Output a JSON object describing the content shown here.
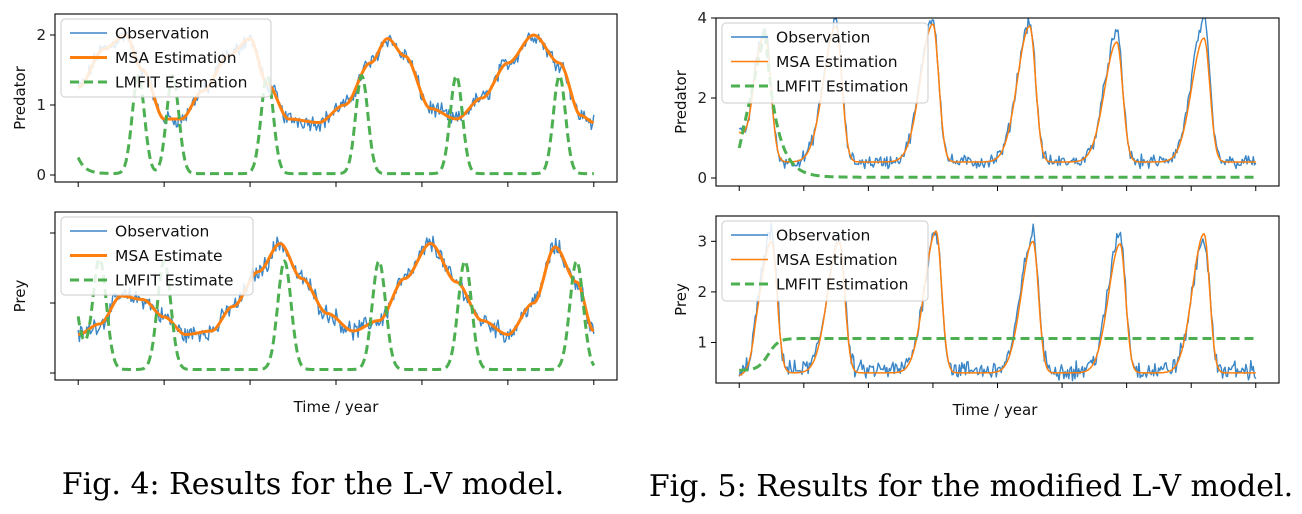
{
  "figures": [
    {
      "caption": "Fig. 4: Results for the L-V model.",
      "xlabel": "Time / year"
    },
    {
      "caption": "Fig. 5: Results for the modified L-V model.",
      "xlabel": "Time / year"
    }
  ],
  "colors": {
    "observation": "#3a86c6",
    "msa": "#ff7f0e",
    "lmfit": "#4caf50"
  },
  "chart_data": [
    {
      "type": "line",
      "figure": "Fig. 4",
      "ylabel": "Predator",
      "xlim": [
        0,
        6
      ],
      "ylim": [
        -0.1,
        2.3
      ],
      "yticks": [
        0,
        1,
        2
      ],
      "xticks": [
        0,
        1,
        2,
        3,
        4,
        5,
        6
      ],
      "legend_position": "top-left",
      "grid": false,
      "series": [
        {
          "name": "Observation",
          "style": "thin-solid",
          "base": [
            [
              0,
              1.25
            ],
            [
              0.3,
              1.8
            ],
            [
              0.55,
              2.0
            ],
            [
              0.75,
              1.5
            ],
            [
              1.0,
              0.8
            ],
            [
              1.2,
              0.8
            ],
            [
              1.45,
              1.2
            ],
            [
              1.75,
              1.7
            ],
            [
              2.0,
              1.95
            ],
            [
              2.2,
              1.3
            ],
            [
              2.45,
              0.8
            ],
            [
              2.8,
              0.75
            ],
            [
              3.1,
              1.0
            ],
            [
              3.4,
              1.6
            ],
            [
              3.6,
              1.95
            ],
            [
              3.8,
              1.7
            ],
            [
              4.1,
              0.95
            ],
            [
              4.4,
              0.8
            ],
            [
              4.7,
              1.1
            ],
            [
              5.0,
              1.6
            ],
            [
              5.3,
              2.0
            ],
            [
              5.6,
              1.6
            ],
            [
              5.85,
              0.85
            ],
            [
              6,
              0.75
            ]
          ],
          "noise": 0.09
        },
        {
          "name": "MSA Estimation",
          "style": "thick-solid",
          "points": [
            [
              0,
              1.25
            ],
            [
              0.3,
              1.8
            ],
            [
              0.55,
              2.0
            ],
            [
              0.75,
              1.5
            ],
            [
              1.0,
              0.8
            ],
            [
              1.2,
              0.8
            ],
            [
              1.45,
              1.2
            ],
            [
              1.75,
              1.7
            ],
            [
              2.0,
              1.95
            ],
            [
              2.2,
              1.3
            ],
            [
              2.45,
              0.8
            ],
            [
              2.8,
              0.75
            ],
            [
              3.1,
              1.0
            ],
            [
              3.4,
              1.6
            ],
            [
              3.6,
              1.95
            ],
            [
              3.8,
              1.7
            ],
            [
              4.1,
              0.95
            ],
            [
              4.4,
              0.8
            ],
            [
              4.7,
              1.1
            ],
            [
              5.0,
              1.6
            ],
            [
              5.3,
              2.0
            ],
            [
              5.6,
              1.6
            ],
            [
              5.85,
              0.85
            ],
            [
              6,
              0.75
            ]
          ]
        },
        {
          "name": "LMFIT Estimation",
          "style": "dashed",
          "spikes": {
            "baseline": 0.02,
            "start": 0.25,
            "peaks": [
              0.7,
              1.1,
              2.2,
              3.3,
              4.4,
              5.6
            ],
            "height": 1.4,
            "width": 0.1
          }
        }
      ]
    },
    {
      "type": "line",
      "figure": "Fig. 4",
      "ylabel": "Prey",
      "xlim": [
        0,
        6
      ],
      "ylim": [
        -0.1,
        2.3
      ],
      "yticks": [
        0,
        1,
        2
      ],
      "ytick_labels": [
        "",
        "",
        ""
      ],
      "xticks": [
        0,
        1,
        2,
        3,
        4,
        5,
        6
      ],
      "legend_position": "top-left",
      "grid": false,
      "series": [
        {
          "name": "Observation",
          "style": "thin-solid",
          "base": [
            [
              0,
              0.55
            ],
            [
              0.25,
              0.7
            ],
            [
              0.5,
              1.1
            ],
            [
              0.75,
              1.05
            ],
            [
              1.0,
              0.8
            ],
            [
              1.25,
              0.55
            ],
            [
              1.55,
              0.6
            ],
            [
              1.8,
              0.95
            ],
            [
              2.1,
              1.45
            ],
            [
              2.35,
              1.85
            ],
            [
              2.6,
              1.35
            ],
            [
              2.9,
              0.85
            ],
            [
              3.2,
              0.6
            ],
            [
              3.5,
              0.75
            ],
            [
              3.8,
              1.35
            ],
            [
              4.1,
              1.85
            ],
            [
              4.4,
              1.3
            ],
            [
              4.7,
              0.75
            ],
            [
              5.0,
              0.55
            ],
            [
              5.3,
              1.0
            ],
            [
              5.55,
              1.8
            ],
            [
              5.8,
              1.3
            ],
            [
              6,
              0.6
            ]
          ],
          "noise": 0.1
        },
        {
          "name": "MSA Estimate",
          "style": "thick-solid",
          "points": [
            [
              0,
              0.55
            ],
            [
              0.25,
              0.7
            ],
            [
              0.5,
              1.1
            ],
            [
              0.75,
              1.05
            ],
            [
              1.0,
              0.8
            ],
            [
              1.25,
              0.55
            ],
            [
              1.55,
              0.6
            ],
            [
              1.8,
              0.95
            ],
            [
              2.1,
              1.45
            ],
            [
              2.35,
              1.85
            ],
            [
              2.6,
              1.35
            ],
            [
              2.9,
              0.85
            ],
            [
              3.2,
              0.6
            ],
            [
              3.5,
              0.75
            ],
            [
              3.8,
              1.35
            ],
            [
              4.1,
              1.85
            ],
            [
              4.4,
              1.3
            ],
            [
              4.7,
              0.75
            ],
            [
              5.0,
              0.55
            ],
            [
              5.3,
              1.0
            ],
            [
              5.55,
              1.8
            ],
            [
              5.8,
              1.3
            ],
            [
              6,
              0.6
            ]
          ]
        },
        {
          "name": "LMFIT Estimate",
          "style": "dashed",
          "spikes": {
            "baseline": 0.05,
            "start": 0.8,
            "peaks": [
              0.25,
              1.0,
              2.4,
              3.5,
              4.5,
              5.8
            ],
            "height": 1.55,
            "width": 0.11
          }
        }
      ]
    },
    {
      "type": "line",
      "figure": "Fig. 5",
      "ylabel": "Predator",
      "xlim": [
        0,
        8
      ],
      "ylim": [
        -0.2,
        4.0
      ],
      "yticks": [
        0,
        2,
        4
      ],
      "xticks": [
        0,
        1,
        2,
        3,
        4,
        5,
        6,
        7,
        8
      ],
      "legend_position": "top-left",
      "grid": false,
      "series": [
        {
          "name": "Observation",
          "style": "thin-solid",
          "peaks": {
            "baseline": 0.4,
            "centers": [
              0.4,
              1.5,
              3.0,
              4.5,
              5.85,
              7.2
            ],
            "heights": [
              3.3,
              3.5,
              3.6,
              3.5,
              3.2,
              3.5
            ],
            "width": 0.18,
            "start": 1.15
          },
          "noise": 0.13
        },
        {
          "name": "MSA Estimation",
          "style": "thin-solid",
          "peaks": {
            "baseline": 0.4,
            "centers": [
              0.4,
              1.5,
              3.0,
              4.5,
              5.85,
              7.2
            ],
            "heights": [
              3.2,
              3.4,
              3.45,
              3.4,
              3.0,
              3.1
            ],
            "width": 0.18,
            "start": 1.15
          }
        },
        {
          "name": "LMFIT Estimation",
          "style": "dashed",
          "decay": {
            "start": 0.75,
            "peak_x": 0.4,
            "peak": 3.7,
            "end": 0.02
          }
        }
      ]
    },
    {
      "type": "line",
      "figure": "Fig. 5",
      "ylabel": "Prey",
      "xlim": [
        0,
        8
      ],
      "ylim": [
        0.2,
        3.5
      ],
      "yticks": [
        1,
        2,
        3
      ],
      "xticks": [
        0,
        1,
        2,
        3,
        4,
        5,
        6,
        7,
        8
      ],
      "legend_position": "top-left",
      "grid": false,
      "series": [
        {
          "name": "Observation",
          "style": "thin-solid",
          "peaks": {
            "baseline": 0.45,
            "centers": [
              0.5,
              1.55,
              3.05,
              4.55,
              5.9,
              7.2
            ],
            "heights": [
              2.7,
              2.6,
              2.75,
              2.7,
              2.7,
              2.6
            ],
            "width": 0.17,
            "start": 0.35
          },
          "noise": 0.14
        },
        {
          "name": "MSA Estimation",
          "style": "thin-solid",
          "peaks": {
            "baseline": 0.4,
            "centers": [
              0.5,
              1.55,
              3.05,
              4.55,
              5.9,
              7.2
            ],
            "heights": [
              2.6,
              2.6,
              2.8,
              2.6,
              2.55,
              2.75
            ],
            "width": 0.17,
            "start": 0.35
          }
        },
        {
          "name": "LMFIT Estimation",
          "style": "dashed",
          "rise": {
            "start": 0.45,
            "end": 1.08,
            "mid_x": 0.45
          }
        }
      ]
    }
  ]
}
